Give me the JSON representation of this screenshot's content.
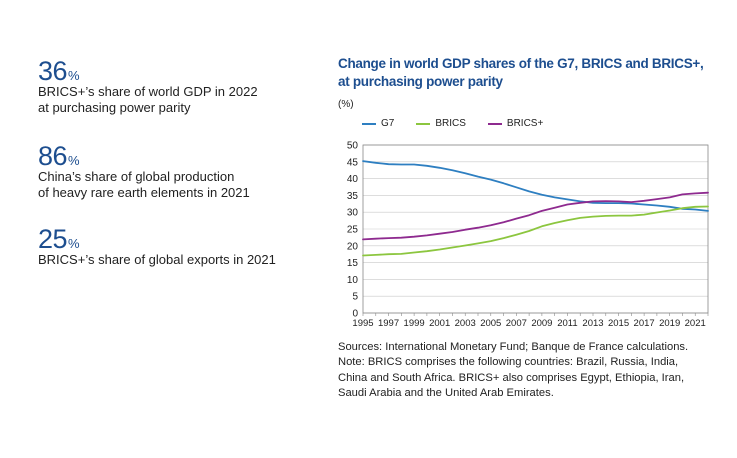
{
  "stats": [
    {
      "number": "36",
      "unit": "%",
      "text_line1": "BRICS+’s share of world GDP in 2022",
      "text_line2": "at purchasing power parity"
    },
    {
      "number": "86",
      "unit": "%",
      "text_line1": "China’s share of global production",
      "text_line2": "of heavy rare earth elements in 2021"
    },
    {
      "number": "25",
      "unit": "%",
      "text_line1": "BRICS+’s share of global exports in 2021",
      "text_line2": ""
    }
  ],
  "chart_data": {
    "type": "line",
    "title_line1": "Change in world GDP shares of the G7, BRICS and BRICS+,",
    "title_line2": "at purchasing power parity",
    "ylabel": "(%)",
    "xlabel": "",
    "ylim": [
      0,
      50
    ],
    "yticks": [
      "0",
      "5",
      "10",
      "15",
      "20",
      "25",
      "30",
      "35",
      "40",
      "45",
      "50"
    ],
    "xtick_labels": [
      "1995",
      "1997",
      "1999",
      "2001",
      "2003",
      "2005",
      "2007",
      "2009",
      "2011",
      "2013",
      "2015",
      "2017",
      "2019",
      "2021"
    ],
    "x": [
      1995,
      1996,
      1997,
      1998,
      1999,
      2000,
      2001,
      2002,
      2003,
      2004,
      2005,
      2006,
      2007,
      2008,
      2009,
      2010,
      2011,
      2012,
      2013,
      2014,
      2015,
      2016,
      2017,
      2018,
      2019,
      2020,
      2021,
      2022
    ],
    "grid": true,
    "legend_position": "top",
    "series": [
      {
        "name": "G7",
        "color": "#2e7fc1",
        "values": [
          45.2,
          44.7,
          44.3,
          44.2,
          44.2,
          43.8,
          43.2,
          42.5,
          41.6,
          40.6,
          39.7,
          38.6,
          37.4,
          36.2,
          35.2,
          34.4,
          33.8,
          33.2,
          32.8,
          32.7,
          32.7,
          32.6,
          32.3,
          32.0,
          31.6,
          31.0,
          30.8,
          30.4
        ]
      },
      {
        "name": "BRICS",
        "color": "#8cc63f",
        "values": [
          17.1,
          17.3,
          17.5,
          17.6,
          18.0,
          18.4,
          18.9,
          19.5,
          20.1,
          20.7,
          21.4,
          22.3,
          23.3,
          24.4,
          25.8,
          26.8,
          27.6,
          28.3,
          28.7,
          28.9,
          29.0,
          29.0,
          29.3,
          29.9,
          30.5,
          31.2,
          31.6,
          31.7
        ]
      },
      {
        "name": "BRICS+",
        "color": "#8e2a8f",
        "values": [
          21.9,
          22.1,
          22.3,
          22.4,
          22.7,
          23.1,
          23.6,
          24.1,
          24.8,
          25.4,
          26.1,
          27.0,
          28.1,
          29.1,
          30.4,
          31.3,
          32.3,
          32.8,
          33.2,
          33.3,
          33.2,
          33.0,
          33.4,
          33.9,
          34.4,
          35.3,
          35.6,
          35.8
        ]
      }
    ]
  },
  "notes": {
    "line1": "Sources: International Monetary Fund; Banque de France calculations.",
    "line2": "Note: BRICS comprises the following countries: Brazil, Russia, India,",
    "line3": "China and South Africa. BRICS+ also comprises Egypt, Ethiopia, Iran,",
    "line4": "Saudi Arabia and the United Arab Emirates."
  }
}
